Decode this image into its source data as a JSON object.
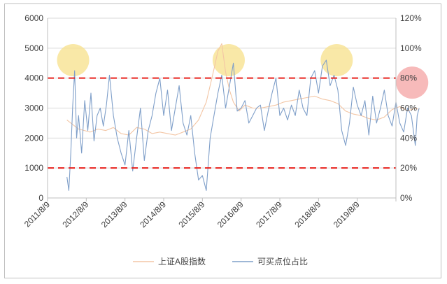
{
  "chart_data": {
    "type": "line",
    "title": "",
    "x_ticks": [
      "2011/8/9",
      "2012/8/9",
      "2013/8/9",
      "2014/8/9",
      "2015/8/9",
      "2016/8/9",
      "2017/8/9",
      "2018/8/9",
      "2019/8/9"
    ],
    "y_left": {
      "min": 0,
      "max": 6000,
      "ticks": [
        "0",
        "1000",
        "2000",
        "3000",
        "4000",
        "5000",
        "6000"
      ]
    },
    "y_right": {
      "min": 0,
      "max": 1.2,
      "ticks": [
        "0%",
        "20%",
        "40%",
        "60%",
        "80%",
        "100%",
        "120%"
      ]
    },
    "grid": true,
    "legend_position": "bottom",
    "reference_lines": [
      {
        "axis": "left",
        "value": 4000,
        "color": "#e8211c",
        "style": "dashed"
      },
      {
        "axis": "left",
        "value": 1000,
        "color": "#e8211c",
        "style": "dashed"
      }
    ],
    "highlights": [
      {
        "x": 0.16,
        "y_left": 4600,
        "color": "#f7e08a"
      },
      {
        "x": 4.18,
        "y_left": 4600,
        "color": "#f7e08a"
      },
      {
        "x": 6.97,
        "y_left": 4600,
        "color": "#f7e08a"
      },
      {
        "x": 8.92,
        "y_left": 3850,
        "color": "#f4a3a3"
      }
    ],
    "series": [
      {
        "name": "上证A股指数",
        "axis": "left",
        "color": "#f3c6a5",
        "x": [
          0,
          0.15,
          0.3,
          0.45,
          0.6,
          0.8,
          1.0,
          1.2,
          1.4,
          1.6,
          1.8,
          2.0,
          2.2,
          2.4,
          2.6,
          2.8,
          3.0,
          3.2,
          3.4,
          3.6,
          3.8,
          3.9,
          4.0,
          4.1,
          4.2,
          4.3,
          4.45,
          4.6,
          4.8,
          5.0,
          5.2,
          5.4,
          5.6,
          5.8,
          6.0,
          6.2,
          6.4,
          6.6,
          6.8,
          7.0,
          7.2,
          7.4,
          7.6,
          7.8,
          8.0,
          8.2,
          8.4,
          8.6,
          8.8,
          9.0,
          9.1
        ],
        "values": [
          2600,
          2450,
          2300,
          2250,
          2200,
          2300,
          2250,
          2350,
          2150,
          2100,
          2350,
          2300,
          2150,
          2200,
          2150,
          2100,
          2200,
          2300,
          2600,
          3200,
          4300,
          4900,
          5150,
          4200,
          3600,
          3200,
          2900,
          3100,
          3000,
          3000,
          3050,
          3100,
          3200,
          3250,
          3300,
          3350,
          3400,
          3300,
          3250,
          3150,
          2900,
          2800,
          2750,
          2650,
          2600,
          2700,
          2950,
          3050,
          2900,
          3000,
          2950
        ]
      },
      {
        "name": "可买点位占比",
        "axis": "right",
        "color": "#7f9fc9",
        "x": [
          0,
          0.05,
          0.1,
          0.15,
          0.2,
          0.25,
          0.3,
          0.38,
          0.46,
          0.54,
          0.62,
          0.7,
          0.78,
          0.86,
          0.94,
          1.02,
          1.1,
          1.2,
          1.3,
          1.4,
          1.5,
          1.6,
          1.7,
          1.8,
          1.9,
          2.0,
          2.1,
          2.2,
          2.3,
          2.4,
          2.5,
          2.6,
          2.7,
          2.8,
          2.9,
          3.0,
          3.1,
          3.2,
          3.3,
          3.4,
          3.5,
          3.6,
          3.7,
          3.8,
          3.9,
          4.0,
          4.1,
          4.2,
          4.3,
          4.4,
          4.5,
          4.6,
          4.7,
          4.8,
          4.9,
          5.0,
          5.1,
          5.2,
          5.3,
          5.4,
          5.5,
          5.6,
          5.7,
          5.8,
          5.9,
          6.0,
          6.1,
          6.2,
          6.3,
          6.4,
          6.5,
          6.6,
          6.7,
          6.8,
          6.9,
          7.0,
          7.1,
          7.2,
          7.3,
          7.4,
          7.5,
          7.6,
          7.7,
          7.8,
          7.9,
          8.0,
          8.1,
          8.2,
          8.3,
          8.4,
          8.5,
          8.6,
          8.7,
          8.8,
          8.9,
          9.0,
          9.05,
          9.1
        ],
        "values": [
          0.14,
          0.05,
          0.3,
          0.62,
          0.85,
          0.4,
          0.55,
          0.3,
          0.65,
          0.45,
          0.7,
          0.38,
          0.55,
          0.6,
          0.48,
          0.62,
          0.82,
          0.55,
          0.4,
          0.3,
          0.22,
          0.45,
          0.18,
          0.4,
          0.6,
          0.25,
          0.45,
          0.55,
          0.7,
          0.8,
          0.55,
          0.72,
          0.45,
          0.6,
          0.75,
          0.5,
          0.42,
          0.55,
          0.3,
          0.12,
          0.15,
          0.05,
          0.4,
          0.55,
          0.7,
          0.82,
          0.6,
          0.75,
          0.9,
          0.58,
          0.6,
          0.65,
          0.5,
          0.55,
          0.6,
          0.62,
          0.45,
          0.58,
          0.7,
          0.8,
          0.55,
          0.6,
          0.52,
          0.62,
          0.55,
          0.72,
          0.6,
          0.55,
          0.8,
          0.85,
          0.7,
          0.88,
          0.92,
          0.75,
          0.82,
          0.72,
          0.45,
          0.35,
          0.5,
          0.74,
          0.62,
          0.55,
          0.65,
          0.42,
          0.68,
          0.5,
          0.6,
          0.72,
          0.55,
          0.48,
          0.64,
          0.5,
          0.44,
          0.6,
          0.55,
          0.35,
          0.55,
          0.6
        ]
      }
    ]
  }
}
